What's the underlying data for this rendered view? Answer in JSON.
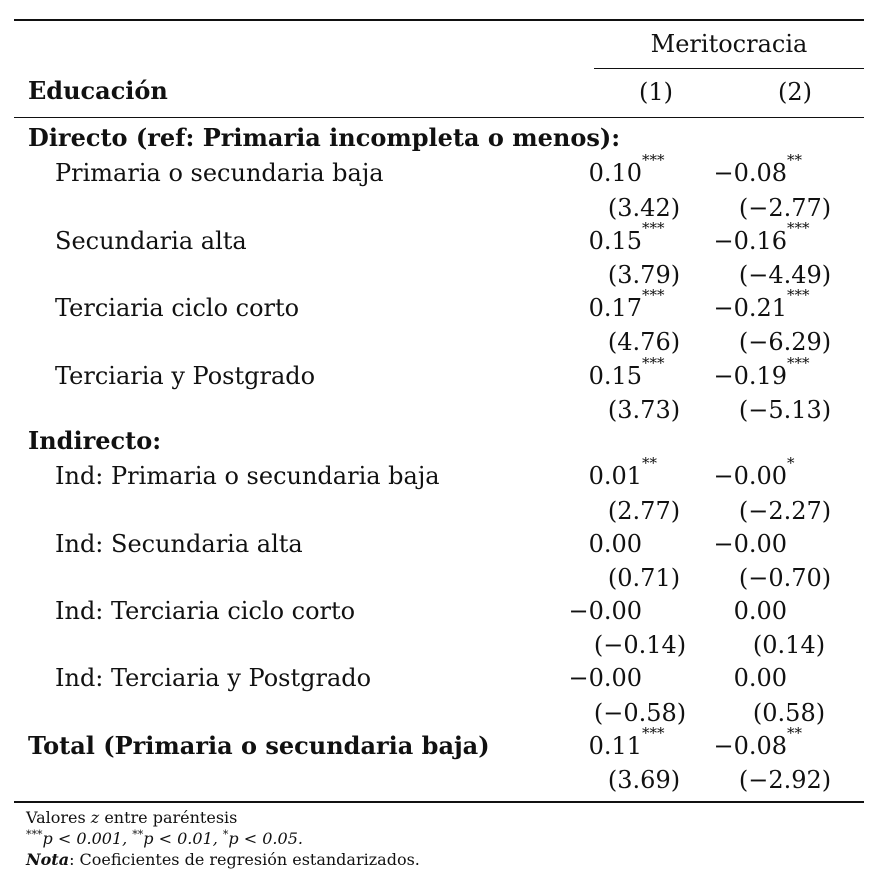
{
  "header": {
    "group_label": "Meritocracia",
    "row_label": "Educación",
    "columns": [
      "(1)",
      "(2)"
    ]
  },
  "sections": {
    "directo": "Directo (ref: Primaria incompleta o menos):",
    "indirecto": "Indirecto:"
  },
  "rows": [
    {
      "label": "Primaria o secundaria baja",
      "c1": "0.10",
      "s1": "***",
      "z1": "(3.42)",
      "c2": "−0.08",
      "s2": "**",
      "z2": "(−2.77)"
    },
    {
      "label": "Secundaria alta",
      "c1": "0.15",
      "s1": "***",
      "z1": "(3.79)",
      "c2": "−0.16",
      "s2": "***",
      "z2": "(−4.49)"
    },
    {
      "label": "Terciaria ciclo corto",
      "c1": "0.17",
      "s1": "***",
      "z1": "(4.76)",
      "c2": "−0.21",
      "s2": "***",
      "z2": "(−6.29)"
    },
    {
      "label": "Terciaria y Postgrado",
      "c1": "0.15",
      "s1": "***",
      "z1": "(3.73)",
      "c2": "−0.19",
      "s2": "***",
      "z2": "(−5.13)"
    },
    {
      "label": "Ind: Primaria o secundaria baja",
      "c1": "0.01",
      "s1": "**",
      "z1": "(2.77)",
      "c2": "−0.00",
      "s2": "*",
      "z2": "(−2.27)"
    },
    {
      "label": "Ind: Secundaria alta",
      "c1": "0.00",
      "s1": "",
      "z1": "(0.71)",
      "c2": "−0.00",
      "s2": "",
      "z2": "(−0.70)"
    },
    {
      "label": "Ind: Terciaria ciclo corto",
      "c1": "−0.00",
      "s1": "",
      "z1": "(−0.14)",
      "c2": "0.00",
      "s2": "",
      "z2": "(0.14)"
    },
    {
      "label": "Ind: Terciaria y Postgrado",
      "c1": "−0.00",
      "s1": "",
      "z1": "(−0.58)",
      "c2": "0.00",
      "s2": "",
      "z2": "(0.58)"
    },
    {
      "label": "Total (Primaria o secundaria baja)",
      "c1": "0.11",
      "s1": "***",
      "z1": "(3.69)",
      "c2": "−0.08",
      "s2": "**",
      "z2": "(−2.92)"
    }
  ],
  "notes": {
    "z_values_prefix": "Valores ",
    "z_symbol": "z",
    "z_values_suffix": " entre paréntesis",
    "sig_1_stars": "***",
    "sig_1_text": "p < 0.001, ",
    "sig_2_stars": "**",
    "sig_2_text": "p < 0.01, ",
    "sig_3_stars": "*",
    "sig_3_text": "p < 0.05.",
    "nota_label": "Nota",
    "nota_text": ": Coeficientes de regresión estandarizados."
  }
}
